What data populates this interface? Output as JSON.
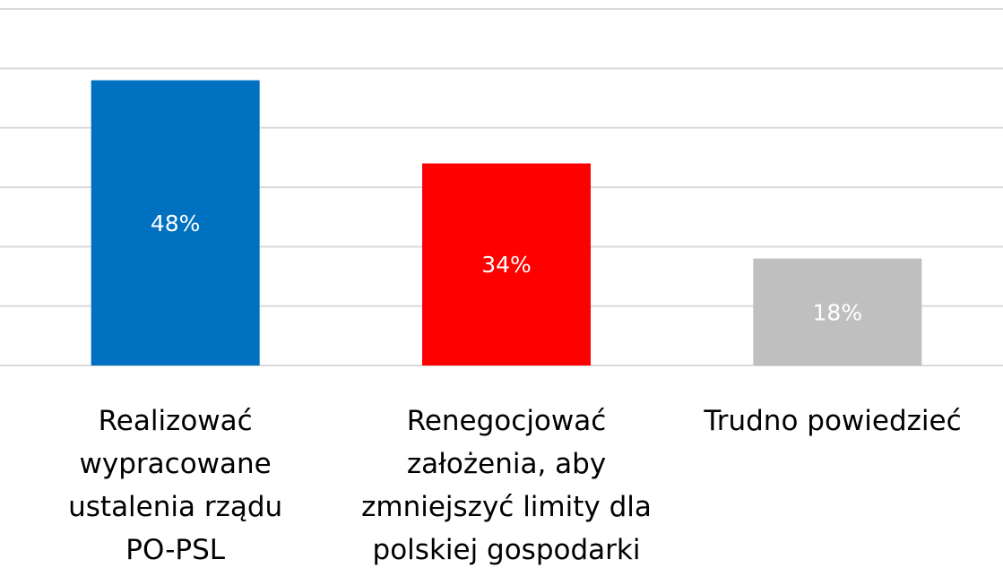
{
  "chart_data": {
    "type": "bar",
    "categories": [
      "Realizować wypracowane ustalenia rządu PO-PSL",
      "Renegocjować założenia, aby zmniejszyć limity dla polskiej gospodarki",
      "Trudno powiedzieć"
    ],
    "values": [
      48,
      34,
      18
    ],
    "value_labels": [
      "48%",
      "34%",
      "18%"
    ],
    "colors": [
      "#0070c0",
      "#ff0000",
      "#bfbfbf"
    ],
    "ylim": [
      0,
      60
    ],
    "yticks": [
      0,
      10,
      20,
      30,
      40,
      50,
      60
    ],
    "grid": true
  }
}
